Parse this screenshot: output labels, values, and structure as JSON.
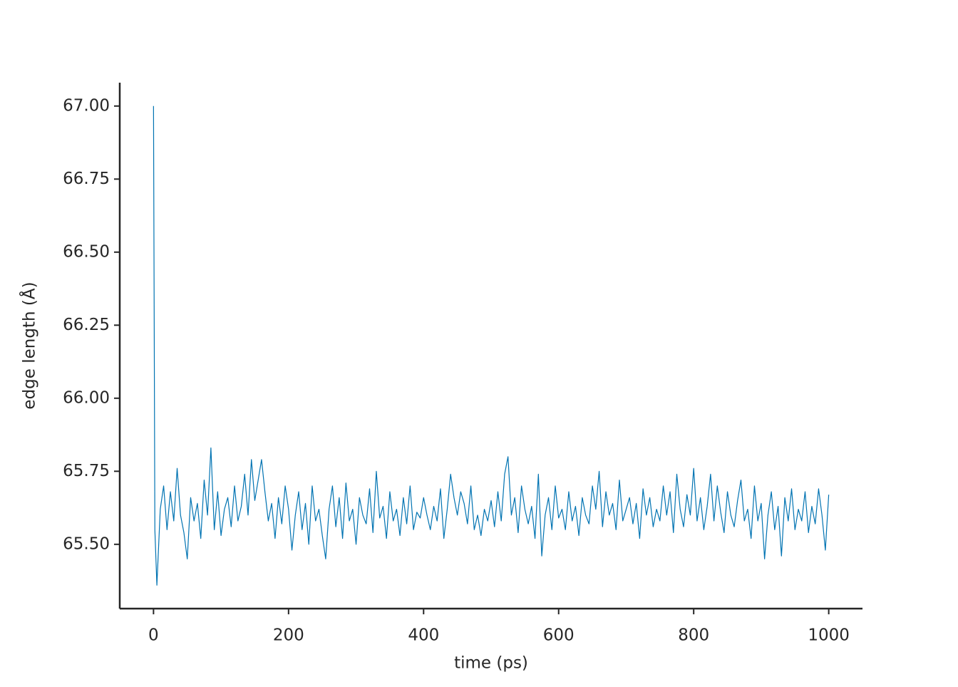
{
  "chart_data": {
    "type": "line",
    "xlabel": "time (ps)",
    "ylabel": "edge length (Å)",
    "x": [
      0,
      2,
      5,
      10,
      15,
      20,
      25,
      30,
      35,
      40,
      45,
      50,
      55,
      60,
      65,
      70,
      75,
      80,
      85,
      90,
      95,
      100,
      105,
      110,
      115,
      120,
      125,
      130,
      135,
      140,
      145,
      150,
      155,
      160,
      165,
      170,
      175,
      180,
      185,
      190,
      195,
      200,
      205,
      210,
      215,
      220,
      225,
      230,
      235,
      240,
      245,
      250,
      255,
      260,
      265,
      270,
      275,
      280,
      285,
      290,
      295,
      300,
      305,
      310,
      315,
      320,
      325,
      330,
      335,
      340,
      345,
      350,
      355,
      360,
      365,
      370,
      375,
      380,
      385,
      390,
      395,
      400,
      405,
      410,
      415,
      420,
      425,
      430,
      435,
      440,
      445,
      450,
      455,
      460,
      465,
      470,
      475,
      480,
      485,
      490,
      495,
      500,
      505,
      510,
      515,
      520,
      525,
      530,
      535,
      540,
      545,
      550,
      555,
      560,
      565,
      570,
      575,
      580,
      585,
      590,
      595,
      600,
      605,
      610,
      615,
      620,
      625,
      630,
      635,
      640,
      645,
      650,
      655,
      660,
      665,
      670,
      675,
      680,
      685,
      690,
      695,
      700,
      705,
      710,
      715,
      720,
      725,
      730,
      735,
      740,
      745,
      750,
      755,
      760,
      765,
      770,
      775,
      780,
      785,
      790,
      795,
      800,
      805,
      810,
      815,
      820,
      825,
      830,
      835,
      840,
      845,
      850,
      855,
      860,
      865,
      870,
      875,
      880,
      885,
      890,
      895,
      900,
      905,
      910,
      915,
      920,
      925,
      930,
      935,
      940,
      945,
      950,
      955,
      960,
      965,
      970,
      975,
      980,
      985,
      990,
      995,
      1000
    ],
    "series": [
      {
        "name": "edge length",
        "color": "#0173b2",
        "values": [
          67.0,
          65.55,
          65.36,
          65.62,
          65.7,
          65.55,
          65.68,
          65.58,
          65.76,
          65.6,
          65.54,
          65.45,
          65.66,
          65.58,
          65.64,
          65.52,
          65.72,
          65.6,
          65.83,
          65.55,
          65.68,
          65.53,
          65.62,
          65.66,
          65.56,
          65.7,
          65.58,
          65.63,
          65.74,
          65.6,
          65.79,
          65.65,
          65.72,
          65.79,
          65.68,
          65.58,
          65.64,
          65.52,
          65.66,
          65.57,
          65.7,
          65.62,
          65.48,
          65.6,
          65.68,
          65.55,
          65.64,
          65.5,
          65.7,
          65.58,
          65.62,
          65.53,
          65.45,
          65.62,
          65.7,
          65.56,
          65.66,
          65.52,
          65.71,
          65.58,
          65.62,
          65.5,
          65.66,
          65.6,
          65.57,
          65.69,
          65.54,
          65.75,
          65.59,
          65.63,
          65.52,
          65.68,
          65.58,
          65.62,
          65.53,
          65.66,
          65.57,
          65.7,
          65.55,
          65.61,
          65.59,
          65.66,
          65.6,
          65.55,
          65.63,
          65.58,
          65.69,
          65.52,
          65.62,
          65.74,
          65.66,
          65.6,
          65.68,
          65.64,
          65.57,
          65.7,
          65.55,
          65.6,
          65.53,
          65.62,
          65.58,
          65.65,
          65.56,
          65.68,
          65.58,
          65.74,
          65.8,
          65.6,
          65.66,
          65.54,
          65.7,
          65.62,
          65.57,
          65.63,
          65.52,
          65.74,
          65.46,
          65.6,
          65.66,
          65.55,
          65.7,
          65.59,
          65.62,
          65.55,
          65.68,
          65.58,
          65.63,
          65.53,
          65.66,
          65.6,
          65.57,
          65.7,
          65.62,
          65.75,
          65.56,
          65.68,
          65.6,
          65.64,
          65.55,
          65.72,
          65.58,
          65.62,
          65.66,
          65.57,
          65.64,
          65.52,
          65.69,
          65.6,
          65.66,
          65.56,
          65.62,
          65.58,
          65.7,
          65.6,
          65.68,
          65.54,
          65.74,
          65.62,
          65.56,
          65.67,
          65.6,
          65.76,
          65.58,
          65.66,
          65.55,
          65.63,
          65.74,
          65.58,
          65.7,
          65.61,
          65.54,
          65.68,
          65.6,
          65.56,
          65.65,
          65.72,
          65.58,
          65.62,
          65.52,
          65.7,
          65.58,
          65.64,
          65.45,
          65.6,
          65.68,
          65.55,
          65.63,
          65.46,
          65.66,
          65.58,
          65.69,
          65.55,
          65.62,
          65.58,
          65.68,
          65.54,
          65.63,
          65.57,
          65.69,
          65.6,
          65.48,
          65.67
        ]
      }
    ],
    "xlim": [
      -50,
      1050
    ],
    "xticks": [
      0,
      200,
      400,
      600,
      800,
      1000
    ],
    "ylim": [
      65.28,
      67.08
    ],
    "yticks": [
      {
        "value": 65.5,
        "label": "65.50"
      },
      {
        "value": 65.75,
        "label": "65.75"
      },
      {
        "value": 66,
        "label": "66.00"
      },
      {
        "value": 66.25,
        "label": "66.25"
      },
      {
        "value": 66.5,
        "label": "66.50"
      },
      {
        "value": 66.75,
        "label": "66.75"
      },
      {
        "value": 67,
        "label": "67.00"
      }
    ],
    "grid": false
  }
}
